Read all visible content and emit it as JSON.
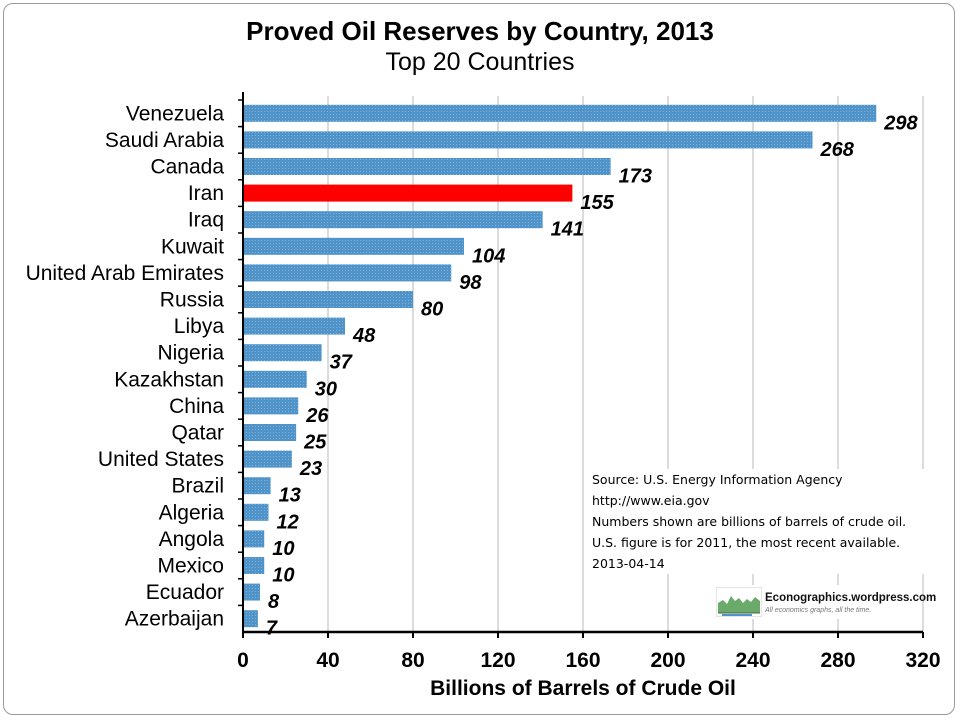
{
  "chart_data": {
    "type": "bar",
    "orientation": "horizontal",
    "title": "Proved Oil Reserves by Country, 2013",
    "subtitle": "Top 20 Countries",
    "categories": [
      "Venezuela",
      "Saudi Arabia",
      "Canada",
      "Iran",
      "Iraq",
      "Kuwait",
      "United Arab Emirates",
      "Russia",
      "Libya",
      "Nigeria",
      "Kazakhstan",
      "China",
      "Qatar",
      "United States",
      "Brazil",
      "Algeria",
      "Angola",
      "Mexico",
      "Ecuador",
      "Azerbaijan"
    ],
    "values": [
      298,
      268,
      173,
      155,
      141,
      104,
      98,
      80,
      48,
      37,
      30,
      26,
      25,
      23,
      13,
      12,
      10,
      10,
      8,
      7
    ],
    "highlight": "Iran",
    "bar_color": "#4f93c9",
    "highlight_color": "#ff0000",
    "xlabel": "Billions of Barrels of Crude Oil",
    "ylabel": "",
    "xlim": [
      0,
      320
    ],
    "xticks": [
      0,
      40,
      80,
      120,
      160,
      200,
      240,
      280,
      320
    ],
    "grid": "vertical",
    "legend": "none"
  },
  "source_note": {
    "lines": [
      "Source:  U.S. Energy Information Agency",
      "http://www.eia.gov",
      "Numbers shown are billions of barrels of crude oil.",
      "U.S. figure is for 2011, the most recent available.",
      "2013-04-14"
    ]
  },
  "logo": {
    "name": "Econographics.wordpress.com",
    "tagline": "All economics graphs, all the time."
  }
}
